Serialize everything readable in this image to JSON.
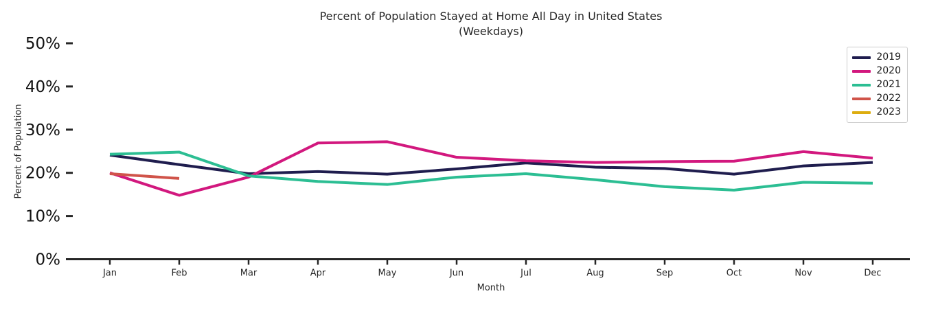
{
  "figure": {
    "title_line1": "Percent of Population Stayed at Home All Day in United States",
    "title_line2": "(Weekdays)",
    "xlabel": "Month",
    "ylabel": "Percent of Population"
  },
  "chart_data": {
    "type": "line",
    "title": "Percent of Population Stayed at Home All Day in United States",
    "subtitle": "(Weekdays)",
    "xlabel": "Month",
    "ylabel": "Percent of Population",
    "categories": [
      "Jan",
      "Feb",
      "Mar",
      "Apr",
      "May",
      "Jun",
      "Jul",
      "Aug",
      "Sep",
      "Oct",
      "Nov",
      "Dec"
    ],
    "ylim": [
      0,
      50
    ],
    "ytick_values": [
      0,
      10,
      20,
      30,
      40,
      50
    ],
    "ytick_labels": [
      "0%",
      "10%",
      "20%",
      "30%",
      "40%",
      "50%"
    ],
    "grid": false,
    "legend_position": "upper right",
    "axis_color": "#262626",
    "series": [
      {
        "name": "2019",
        "color": "#1f1d4e",
        "values": [
          24.1,
          21.9,
          19.8,
          20.3,
          19.7,
          20.9,
          22.3,
          21.3,
          21.0,
          19.7,
          21.6,
          22.4
        ]
      },
      {
        "name": "2020",
        "color": "#d2187e",
        "values": [
          20.0,
          14.8,
          19.0,
          26.9,
          27.2,
          23.6,
          22.8,
          22.4,
          22.6,
          22.7,
          24.9,
          23.4
        ]
      },
      {
        "name": "2021",
        "color": "#2cbe93",
        "values": [
          24.3,
          24.8,
          19.3,
          18.0,
          17.3,
          19.0,
          19.8,
          18.4,
          16.8,
          16.0,
          17.8,
          17.6
        ]
      },
      {
        "name": "2022",
        "color": "#d0544a",
        "values": [
          19.8,
          18.7
        ]
      },
      {
        "name": "2023",
        "color": "#ddad10",
        "values": []
      }
    ]
  }
}
